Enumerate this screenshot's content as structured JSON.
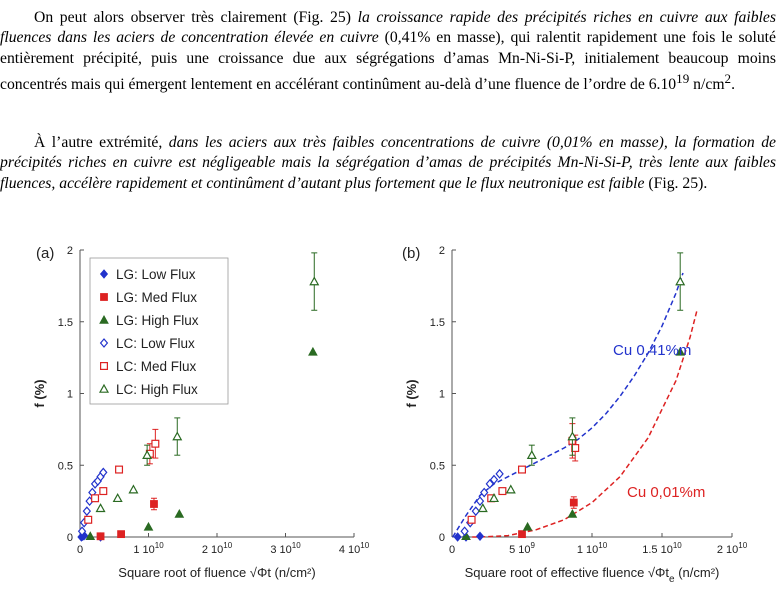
{
  "text": {
    "p1": {
      "a": "On peut alors observer très clairement (Fig. 25) ",
      "b": "la croissance rapide des précipités riches en cuivre aux faibles fluences dans les aciers de concentration élevée en cuivre",
      "c": " (0,41% en masse), qui ralentit rapidement une fois le soluté entièrement précipité, puis une croissance due aux ségrégations d’amas Mn-Ni-Si-P, initialement beaucoup moins concentrés mais qui émergent lentement en accélérant continûment au-delà d’une fluence de l’ordre de 6.10",
      "sup1": "19",
      "d": " n/cm",
      "sup2": "2",
      "e": "."
    },
    "p2": {
      "a": "À l’autre extrémité, ",
      "b": "dans les aciers aux très faibles concentrations de cuivre (0,01% en masse), la formation de précipités riches en cuivre est négligeable mais la ségrégation d’amas de précipités Mn-Ni-Si-P, très lente aux faibles fluences, accélère rapidement et continûment d’autant plus fortement que le flux neutronique est faible",
      "c": " (Fig. 25)."
    }
  },
  "colors": {
    "blue": "#2233cc",
    "red": "#dd2222",
    "green": "#2a6a22",
    "axis": "#555555"
  },
  "chart_data": [
    {
      "type": "scatter",
      "panel_label": "(a)",
      "xlabel": "Square root of fluence √Φt (n/cm²)",
      "ylabel": "f (%)",
      "xlim": [
        0,
        40000000000.0
      ],
      "ylim": [
        0,
        2
      ],
      "x_ticks": [
        {
          "v": 0,
          "base": "0",
          "exp": ""
        },
        {
          "v": 10000000000.0,
          "base": "1 10",
          "exp": "10"
        },
        {
          "v": 20000000000.0,
          "base": "2 10",
          "exp": "10"
        },
        {
          "v": 30000000000.0,
          "base": "3 10",
          "exp": "10"
        },
        {
          "v": 40000000000.0,
          "base": "4 10",
          "exp": "10"
        }
      ],
      "y_ticks": [
        {
          "v": 0,
          "label": "0"
        },
        {
          "v": 0.5,
          "label": "0.5"
        },
        {
          "v": 1,
          "label": "1"
        },
        {
          "v": 1.5,
          "label": "1.5"
        },
        {
          "v": 2,
          "label": "2"
        }
      ],
      "legend_position": "top-left",
      "series": [
        {
          "name": "LG: Low Flux",
          "marker": "diamond",
          "filled": true,
          "color": "#2233cc",
          "x": [
            200000000.0,
            400000000.0,
            600000000.0,
            3000000000.0
          ],
          "y": [
            0.0,
            0.005,
            0.01,
            0.0
          ],
          "err": [
            0,
            0,
            0,
            0
          ]
        },
        {
          "name": "LG: Med Flux",
          "marker": "square",
          "filled": true,
          "color": "#dd2222",
          "x": [
            3000000000.0,
            6000000000.0,
            10800000000.0
          ],
          "y": [
            0.005,
            0.02,
            0.23
          ],
          "err": [
            0,
            0,
            0.04
          ]
        },
        {
          "name": "LG: High Flux",
          "marker": "triangle",
          "filled": true,
          "color": "#2a6a22",
          "x": [
            1500000000.0,
            10000000000.0,
            14500000000.0,
            34000000000.0
          ],
          "y": [
            0.005,
            0.07,
            0.16,
            1.29
          ],
          "err": [
            0,
            0,
            0,
            0
          ]
        },
        {
          "name": "LC: Low Flux",
          "marker": "diamond",
          "filled": false,
          "color": "#2233cc",
          "x": [
            300000000.0,
            600000000.0,
            1000000000.0,
            1400000000.0,
            1800000000.0,
            2200000000.0,
            2600000000.0,
            3000000000.0,
            3400000000.0
          ],
          "y": [
            0.04,
            0.1,
            0.18,
            0.25,
            0.31,
            0.37,
            0.39,
            0.42,
            0.45
          ],
          "err": [
            0,
            0,
            0,
            0,
            0,
            0,
            0,
            0,
            0
          ]
        },
        {
          "name": "LC: Med Flux",
          "marker": "square",
          "filled": false,
          "color": "#dd2222",
          "x": [
            1200000000.0,
            2200000000.0,
            3400000000.0,
            5700000000.0,
            10200000000.0,
            11000000000.0
          ],
          "y": [
            0.12,
            0.27,
            0.32,
            0.47,
            0.58,
            0.65
          ],
          "err": [
            0,
            0,
            0,
            0,
            0.07,
            0.1
          ]
        },
        {
          "name": "LC: High Flux",
          "marker": "triangle",
          "filled": false,
          "color": "#2a6a22",
          "x": [
            3000000000.0,
            5500000000.0,
            7800000000.0,
            9800000000.0,
            14200000000.0,
            34200000000.0
          ],
          "y": [
            0.2,
            0.27,
            0.33,
            0.57,
            0.7,
            1.78
          ],
          "err": [
            0,
            0,
            0,
            0.07,
            0.13,
            0.2
          ]
        }
      ]
    },
    {
      "type": "scatter",
      "panel_label": "(b)",
      "xlabel": "Square root of effective fluence √Φt",
      "xlabel_sub": "e",
      "xlabel_unit": " (n/cm²)",
      "ylabel": "f (%)",
      "xlim": [
        0,
        20000000000.0
      ],
      "ylim": [
        0,
        2
      ],
      "x_ticks": [
        {
          "v": 0,
          "base": "0",
          "exp": ""
        },
        {
          "v": 5000000000.0,
          "base": "5 10",
          "exp": "9"
        },
        {
          "v": 10000000000.0,
          "base": "1 10",
          "exp": "10"
        },
        {
          "v": 15000000000.0,
          "base": "1.5 10",
          "exp": "10"
        },
        {
          "v": 20000000000.0,
          "base": "2 10",
          "exp": "10"
        }
      ],
      "y_ticks": [
        {
          "v": 0,
          "label": "0"
        },
        {
          "v": 0.5,
          "label": "0.5"
        },
        {
          "v": 1,
          "label": "1"
        },
        {
          "v": 1.5,
          "label": "1.5"
        },
        {
          "v": 2,
          "label": "2"
        }
      ],
      "annotations": [
        {
          "text": "Cu 0,41%m",
          "color": "#2233cc",
          "x": 11500000000.0,
          "y": 1.27
        },
        {
          "text": "Cu 0,01%m",
          "color": "#dd2222",
          "x": 12500000000.0,
          "y": 0.28
        }
      ],
      "curves": [
        {
          "name": "Cu 0,41%m",
          "color": "#2233cc",
          "x": [
            50000000.0,
            1000000000.0,
            2000000000.0,
            3000000000.0,
            4000000000.0,
            5000000000.0,
            6000000000.0,
            7000000000.0,
            8000000000.0,
            9000000000.0,
            10000000000.0,
            11000000000.0,
            12000000000.0,
            13000000000.0,
            14000000000.0,
            15000000000.0,
            16000000000.0,
            16500000000.0
          ],
          "y": [
            0.0,
            0.15,
            0.29,
            0.37,
            0.42,
            0.47,
            0.52,
            0.57,
            0.62,
            0.68,
            0.76,
            0.86,
            0.98,
            1.12,
            1.28,
            1.47,
            1.7,
            1.84
          ]
        },
        {
          "name": "Cu 0,01%m",
          "color": "#dd2222",
          "x": [
            300000000.0,
            2000000000.0,
            4000000000.0,
            6000000000.0,
            8000000000.0,
            10000000000.0,
            12000000000.0,
            14000000000.0,
            16000000000.0,
            17000000000.0,
            17500000000.0
          ],
          "y": [
            0.0,
            0.0,
            0.01,
            0.05,
            0.12,
            0.24,
            0.42,
            0.69,
            1.09,
            1.39,
            1.58
          ]
        }
      ],
      "series": [
        {
          "name": "LG: Low Flux",
          "marker": "diamond",
          "filled": true,
          "color": "#2233cc",
          "x": [
            400000000.0,
            1000000000.0,
            2000000000.0
          ],
          "y": [
            0.0,
            0.0,
            0.005
          ],
          "err": [
            0,
            0,
            0
          ]
        },
        {
          "name": "LG: Med Flux",
          "marker": "square",
          "filled": true,
          "color": "#dd2222",
          "x": [
            5000000000.0,
            8700000000.0
          ],
          "y": [
            0.02,
            0.24
          ],
          "err": [
            0,
            0.04
          ]
        },
        {
          "name": "LG: High Flux",
          "marker": "triangle",
          "filled": true,
          "color": "#2a6a22",
          "x": [
            1000000000.0,
            5400000000.0,
            8600000000.0,
            16300000000.0
          ],
          "y": [
            0.005,
            0.07,
            0.16,
            1.29
          ],
          "err": [
            0,
            0,
            0,
            0
          ]
        },
        {
          "name": "LC: Low Flux",
          "marker": "diamond",
          "filled": false,
          "color": "#2233cc",
          "x": [
            900000000.0,
            1300000000.0,
            1700000000.0,
            2000000000.0,
            2300000000.0,
            2700000000.0,
            3000000000.0,
            3400000000.0
          ],
          "y": [
            0.04,
            0.1,
            0.18,
            0.25,
            0.31,
            0.37,
            0.4,
            0.44
          ],
          "err": [
            0,
            0,
            0,
            0,
            0,
            0,
            0,
            0
          ]
        },
        {
          "name": "LC: Med Flux",
          "marker": "square",
          "filled": false,
          "color": "#dd2222",
          "x": [
            1400000000.0,
            2800000000.0,
            3600000000.0,
            5000000000.0,
            8600000000.0,
            8800000000.0
          ],
          "y": [
            0.12,
            0.27,
            0.32,
            0.47,
            0.67,
            0.62
          ],
          "err": [
            0,
            0,
            0,
            0,
            0.12,
            0.09
          ]
        },
        {
          "name": "LC: High Flux",
          "marker": "triangle",
          "filled": false,
          "color": "#2a6a22",
          "x": [
            2200000000.0,
            3000000000.0,
            4200000000.0,
            5700000000.0,
            8600000000.0,
            16300000000.0
          ],
          "y": [
            0.2,
            0.27,
            0.33,
            0.57,
            0.7,
            1.78
          ],
          "err": [
            0,
            0,
            0,
            0.07,
            0.13,
            0.2
          ]
        }
      ]
    }
  ]
}
